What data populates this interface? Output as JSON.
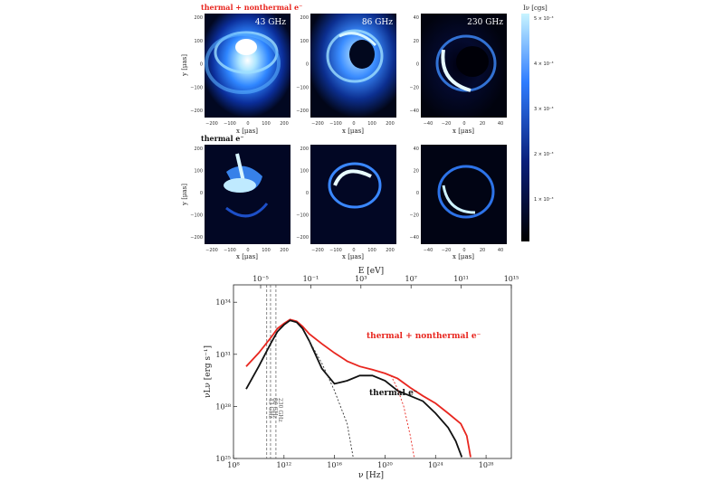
{
  "top": {
    "row1_label": "thermal + nonthermal e⁻",
    "row2_label": "thermal e⁻",
    "freq_labels": [
      "43 GHz",
      "86 GHz",
      "230 GHz"
    ],
    "x_axis_label": "x [μas]",
    "y_axis_label": "y [μas]",
    "colorbar_label": "Iν [cgs]",
    "colorbar_ticks": [
      "1 × 10⁻³",
      "2 × 10⁻³",
      "3 × 10⁻³",
      "4 × 10⁻³",
      "5 × 10⁻³"
    ],
    "panel_ticks": {
      "big": [
        "−200",
        "−100",
        "0",
        "100",
        "200"
      ],
      "small": [
        "−40",
        "−20",
        "0",
        "20",
        "40"
      ]
    }
  },
  "chart_data": {
    "type": "line",
    "xlabel": "ν [Hz]",
    "ylabel": "νLν [erg s⁻¹]",
    "top_xlabel": "E [eV]",
    "x_scale": "log",
    "y_scale": "log",
    "xlim": [
      100000000.0,
      1e+30
    ],
    "ylim": [
      1e+25,
      1e+35
    ],
    "x_tick_labels": [
      "10⁸",
      "10¹²",
      "10¹⁶",
      "10²⁰",
      "10²⁴",
      "10²⁸"
    ],
    "x_tick_values": [
      100000000.0,
      1000000000000.0,
      1e+16,
      1e+20,
      1e+24,
      1e+28
    ],
    "top_tick_labels": [
      "10⁻⁵",
      "10⁻¹",
      "10³",
      "10⁷",
      "10¹¹",
      "10¹⁵"
    ],
    "y_tick_labels": [
      "10²⁵",
      "10²⁸",
      "10³¹",
      "10³⁴"
    ],
    "y_tick_values": [
      1e+25,
      1e+28,
      1e+31,
      1e+34
    ],
    "vlines": [
      {
        "x": 43000000000.0,
        "label": "43 GHz"
      },
      {
        "x": 86000000000.0,
        "label": "86 GHz"
      },
      {
        "x": 230000000000.0,
        "label": "230 GHz"
      }
    ],
    "series": [
      {
        "name": "thermal + nonthermal e⁻",
        "color": "#e8261f",
        "x": [
          1000000000.0,
          10000000000.0,
          100000000000.0,
          300000000000.0,
          1000000000000.0,
          3000000000000.0,
          10000000000000.0,
          30000000000000.0,
          100000000000000.0,
          1000000000000000.0,
          1e+16,
          1e+17,
          1e+18,
          1e+19,
          1e+20,
          1e+21,
          1e+22,
          1e+23,
          1e+24,
          1e+25,
          1e+26,
          3e+26,
          6e+26
        ],
        "y": [
          2e+30,
          1.2e+31,
          1e+32,
          3e+32,
          6e+32,
          1e+33,
          8e+32,
          4e+32,
          1.5e+32,
          4e+31,
          1.2e+31,
          4e+30,
          2e+30,
          1.3e+30,
          8e+29,
          4e+29,
          1.2e+29,
          4e+28,
          1.5e+28,
          4e+27,
          1e+27,
          2e+26,
          1.2e+25
        ]
      },
      {
        "name": "thermal e⁻",
        "color": "#111111",
        "x": [
          1000000000.0,
          10000000000.0,
          100000000000.0,
          300000000000.0,
          1000000000000.0,
          3000000000000.0,
          10000000000000.0,
          30000000000000.0,
          100000000000000.0,
          1000000000000000.0,
          1e+16,
          1e+17,
          1e+18,
          1e+19,
          1e+20,
          1e+21,
          1e+22,
          1e+23,
          1e+24,
          1e+25,
          4e+25,
          1.2e+26
        ],
        "y": [
          1e+29,
          2e+30,
          5e+31,
          2e+32,
          5e+32,
          9e+32,
          7e+32,
          3e+32,
          6e+31,
          1.5e+30,
          2e+29,
          3e+29,
          6e+29,
          6e+29,
          3e+29,
          8e+28,
          4e+28,
          2e+28,
          4e+27,
          6e+26,
          1e+26,
          1.2e+25
        ]
      },
      {
        "name": "",
        "color": "#333333",
        "dashed": true,
        "x": [
          100000000000000.0,
          1000000000000000.0,
          1e+16,
          1e+17,
          3e+17
        ],
        "y": [
          6e+31,
          3e+30,
          8e+28,
          1e+27,
          1.2e+25
        ]
      },
      {
        "name": "",
        "color": "#e8261f",
        "dashed": true,
        "x": [
          3e+20,
          1e+21,
          3e+21,
          1e+22,
          2e+22
        ],
        "y": [
          6e+29,
          1e+29,
          1e+28,
          2e+26,
          1.2e+25
        ]
      }
    ],
    "annotations": [
      {
        "text": "thermal + nonthermal e⁻",
        "color": "#e8261f"
      },
      {
        "text": "thermal e⁻",
        "color": "#111111"
      }
    ]
  }
}
